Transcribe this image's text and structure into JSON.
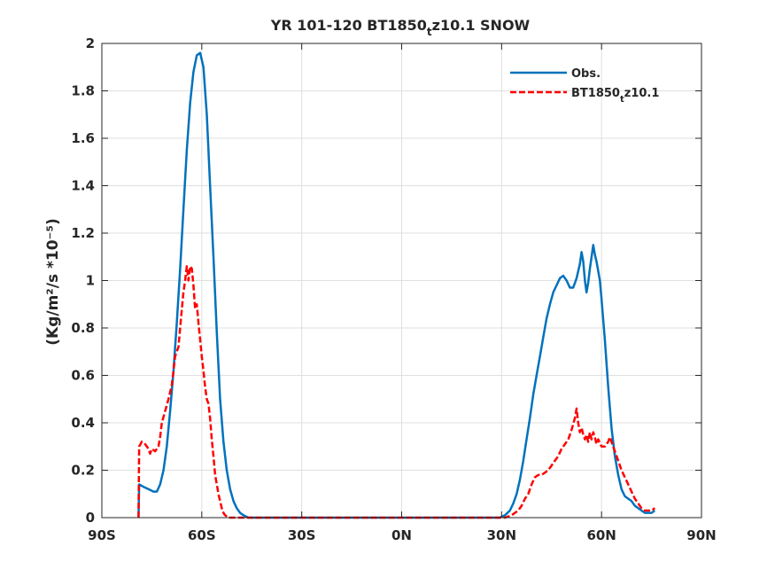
{
  "chart_data": {
    "type": "line",
    "title": "YR 101-120 BT1850",
    "title_sub": "t",
    "title_rest": "z10.1 SNOW",
    "ylabel": "(Kg/m²/s *10⁻⁵)",
    "xlabel": "",
    "xlim": [
      -90,
      90
    ],
    "ylim": [
      0,
      2
    ],
    "grid": true,
    "legend_position": "top-right",
    "xticks": [
      {
        "value": -90,
        "label": "90S"
      },
      {
        "value": -60,
        "label": "60S"
      },
      {
        "value": -30,
        "label": "30S"
      },
      {
        "value": 0,
        "label": "0N"
      },
      {
        "value": 30,
        "label": "30N"
      },
      {
        "value": 60,
        "label": "60N"
      },
      {
        "value": 90,
        "label": "90N"
      }
    ],
    "yticks": [
      {
        "value": 0,
        "label": "0"
      },
      {
        "value": 0.2,
        "label": "0.2"
      },
      {
        "value": 0.4,
        "label": "0.4"
      },
      {
        "value": 0.6,
        "label": "0.6"
      },
      {
        "value": 0.8,
        "label": "0.8"
      },
      {
        "value": 1,
        "label": "1"
      },
      {
        "value": 1.2,
        "label": "1.2"
      },
      {
        "value": 1.4,
        "label": "1.4"
      },
      {
        "value": 1.6,
        "label": "1.6"
      },
      {
        "value": 1.8,
        "label": "1.8"
      },
      {
        "value": 2,
        "label": "2"
      }
    ],
    "series": [
      {
        "name": "Obs.",
        "color": "#0072bd",
        "dash": "solid",
        "points": [
          [
            -79,
            0.0
          ],
          [
            -78.8,
            0.14
          ],
          [
            -77.5,
            0.13
          ],
          [
            -76,
            0.12
          ],
          [
            -74.5,
            0.11
          ],
          [
            -73.5,
            0.11
          ],
          [
            -72.5,
            0.14
          ],
          [
            -71.5,
            0.2
          ],
          [
            -70.5,
            0.3
          ],
          [
            -69.5,
            0.45
          ],
          [
            -68.5,
            0.62
          ],
          [
            -67.5,
            0.82
          ],
          [
            -66.5,
            1.05
          ],
          [
            -65.5,
            1.3
          ],
          [
            -64.5,
            1.55
          ],
          [
            -63.5,
            1.75
          ],
          [
            -62.5,
            1.88
          ],
          [
            -61.5,
            1.95
          ],
          [
            -60.5,
            1.96
          ],
          [
            -59.5,
            1.9
          ],
          [
            -58.5,
            1.7
          ],
          [
            -57.5,
            1.4
          ],
          [
            -56.5,
            1.1
          ],
          [
            -55.5,
            0.78
          ],
          [
            -54.5,
            0.5
          ],
          [
            -53.5,
            0.32
          ],
          [
            -52.5,
            0.2
          ],
          [
            -51.5,
            0.12
          ],
          [
            -50.5,
            0.07
          ],
          [
            -49.5,
            0.04
          ],
          [
            -48.5,
            0.02
          ],
          [
            -47.5,
            0.01
          ],
          [
            -46,
            0.0
          ],
          [
            -40,
            0.0
          ],
          [
            -20,
            0.0
          ],
          [
            0,
            0.0
          ],
          [
            20,
            0.0
          ],
          [
            29.5,
            0.0
          ],
          [
            31,
            0.01
          ],
          [
            32.5,
            0.03
          ],
          [
            33.5,
            0.06
          ],
          [
            34.5,
            0.1
          ],
          [
            35.5,
            0.16
          ],
          [
            36.5,
            0.24
          ],
          [
            37.5,
            0.33
          ],
          [
            38.5,
            0.42
          ],
          [
            39.5,
            0.52
          ],
          [
            40.5,
            0.6
          ],
          [
            41.5,
            0.68
          ],
          [
            42.5,
            0.76
          ],
          [
            43.5,
            0.84
          ],
          [
            44.5,
            0.9
          ],
          [
            45.5,
            0.95
          ],
          [
            46.5,
            0.98
          ],
          [
            47.5,
            1.01
          ],
          [
            48.5,
            1.02
          ],
          [
            49.5,
            1.0
          ],
          [
            50.5,
            0.97
          ],
          [
            51.5,
            0.97
          ],
          [
            52.5,
            1.01
          ],
          [
            53.5,
            1.07
          ],
          [
            54,
            1.12
          ],
          [
            54.5,
            1.08
          ],
          [
            55,
            1.0
          ],
          [
            55.5,
            0.95
          ],
          [
            56,
            0.99
          ],
          [
            56.5,
            1.05
          ],
          [
            57,
            1.1
          ],
          [
            57.5,
            1.15
          ],
          [
            58,
            1.11
          ],
          [
            58.5,
            1.08
          ],
          [
            59.5,
            1.0
          ],
          [
            60,
            0.92
          ],
          [
            61,
            0.75
          ],
          [
            62,
            0.55
          ],
          [
            63,
            0.38
          ],
          [
            64,
            0.26
          ],
          [
            65,
            0.18
          ],
          [
            66,
            0.12
          ],
          [
            67,
            0.09
          ],
          [
            68,
            0.08
          ],
          [
            69,
            0.07
          ],
          [
            70,
            0.05
          ],
          [
            71,
            0.04
          ],
          [
            72,
            0.03
          ],
          [
            73,
            0.02
          ],
          [
            74,
            0.02
          ],
          [
            75,
            0.02
          ],
          [
            76,
            0.03
          ]
        ]
      },
      {
        "name": "BT1850",
        "name_sub": "t",
        "name_rest": "z10.1",
        "color": "#ff0000",
        "dash": "dashed",
        "points": [
          [
            -79,
            0.0
          ],
          [
            -78.8,
            0.3
          ],
          [
            -78,
            0.32
          ],
          [
            -77,
            0.31
          ],
          [
            -76,
            0.29
          ],
          [
            -75.5,
            0.27
          ],
          [
            -75,
            0.29
          ],
          [
            -74,
            0.28
          ],
          [
            -73,
            0.3
          ],
          [
            -72.5,
            0.34
          ],
          [
            -72,
            0.4
          ],
          [
            -71,
            0.45
          ],
          [
            -70,
            0.5
          ],
          [
            -69,
            0.56
          ],
          [
            -68.5,
            0.62
          ],
          [
            -68,
            0.68
          ],
          [
            -67,
            0.72
          ],
          [
            -66.5,
            0.8
          ],
          [
            -66,
            0.88
          ],
          [
            -65.5,
            0.95
          ],
          [
            -65,
            1.0
          ],
          [
            -64.5,
            1.06
          ],
          [
            -64,
            1.0
          ],
          [
            -63.5,
            1.06
          ],
          [
            -63,
            1.05
          ],
          [
            -62.5,
            0.98
          ],
          [
            -62,
            0.88
          ],
          [
            -61.5,
            0.9
          ],
          [
            -61,
            0.82
          ],
          [
            -60.5,
            0.75
          ],
          [
            -60,
            0.68
          ],
          [
            -59.5,
            0.62
          ],
          [
            -59,
            0.55
          ],
          [
            -58.5,
            0.5
          ],
          [
            -58,
            0.48
          ],
          [
            -57.5,
            0.42
          ],
          [
            -57,
            0.33
          ],
          [
            -56.5,
            0.26
          ],
          [
            -56,
            0.18
          ],
          [
            -55.5,
            0.14
          ],
          [
            -55,
            0.1
          ],
          [
            -54.5,
            0.07
          ],
          [
            -54,
            0.04
          ],
          [
            -53.5,
            0.02
          ],
          [
            -53,
            0.01
          ],
          [
            -52,
            0.0
          ],
          [
            -40,
            0.0
          ],
          [
            -20,
            0.0
          ],
          [
            0,
            0.0
          ],
          [
            20,
            0.0
          ],
          [
            31,
            0.0
          ],
          [
            32,
            0.005
          ],
          [
            33,
            0.01
          ],
          [
            34,
            0.02
          ],
          [
            35,
            0.03
          ],
          [
            36,
            0.05
          ],
          [
            37,
            0.08
          ],
          [
            38,
            0.1
          ],
          [
            39,
            0.14
          ],
          [
            40,
            0.17
          ],
          [
            41,
            0.18
          ],
          [
            42,
            0.18
          ],
          [
            43,
            0.19
          ],
          [
            44,
            0.2
          ],
          [
            45,
            0.22
          ],
          [
            46,
            0.24
          ],
          [
            47,
            0.26
          ],
          [
            48,
            0.29
          ],
          [
            49,
            0.31
          ],
          [
            50,
            0.33
          ],
          [
            51,
            0.37
          ],
          [
            52,
            0.42
          ],
          [
            52.5,
            0.46
          ],
          [
            53,
            0.4
          ],
          [
            53.5,
            0.36
          ],
          [
            54,
            0.38
          ],
          [
            54.5,
            0.35
          ],
          [
            55,
            0.33
          ],
          [
            55.5,
            0.35
          ],
          [
            56,
            0.32
          ],
          [
            56.5,
            0.36
          ],
          [
            57,
            0.33
          ],
          [
            57.5,
            0.36
          ],
          [
            58,
            0.34
          ],
          [
            58.5,
            0.31
          ],
          [
            59,
            0.33
          ],
          [
            60,
            0.3
          ],
          [
            61,
            0.3
          ],
          [
            62,
            0.32
          ],
          [
            62.5,
            0.34
          ],
          [
            63,
            0.32
          ],
          [
            64,
            0.28
          ],
          [
            65,
            0.24
          ],
          [
            66,
            0.2
          ],
          [
            67,
            0.17
          ],
          [
            68,
            0.14
          ],
          [
            69,
            0.11
          ],
          [
            70,
            0.08
          ],
          [
            71,
            0.06
          ],
          [
            72,
            0.04
          ],
          [
            73,
            0.03
          ],
          [
            74,
            0.03
          ],
          [
            75,
            0.03
          ],
          [
            76,
            0.04
          ]
        ]
      }
    ]
  }
}
